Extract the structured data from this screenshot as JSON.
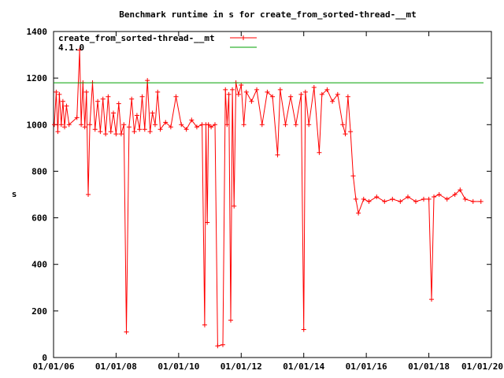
{
  "chart_data": {
    "type": "line",
    "title": "Benchmark runtime in s for create_from_sorted-thread-__mt",
    "xlabel": "",
    "ylabel": "s",
    "xlim": [
      "2006-01-01",
      "2020-01-01"
    ],
    "ylim": [
      0,
      1400
    ],
    "grid": false,
    "legend_position": "top-left",
    "x_tick_labels": [
      "01/01/06",
      "01/01/08",
      "01/01/10",
      "01/01/12",
      "01/01/14",
      "01/01/16",
      "01/01/18",
      "01/01/20"
    ],
    "y_tick_labels": [
      "0",
      "200",
      "400",
      "600",
      "800",
      "1000",
      "1200",
      "1400"
    ],
    "series": [
      {
        "name": "create_from_sorted-thread-__mt",
        "color": "#ff0000",
        "marker": "plus",
        "points": [
          [
            "2006-01-10",
            1000
          ],
          [
            "2006-02-01",
            1140
          ],
          [
            "2006-02-20",
            970
          ],
          [
            "2006-03-10",
            1130
          ],
          [
            "2006-04-01",
            1000
          ],
          [
            "2006-04-20",
            1100
          ],
          [
            "2006-05-10",
            990
          ],
          [
            "2006-06-01",
            1080
          ],
          [
            "2006-07-01",
            1000
          ],
          [
            "2006-10-01",
            1030
          ],
          [
            "2006-11-01",
            1320
          ],
          [
            "2006-11-20",
            1000
          ],
          [
            "2006-12-10",
            1180
          ],
          [
            "2007-01-01",
            990
          ],
          [
            "2007-01-20",
            1140
          ],
          [
            "2007-02-10",
            700
          ],
          [
            "2007-03-01",
            1000
          ],
          [
            "2007-04-01",
            1180
          ],
          [
            "2007-05-01",
            980
          ],
          [
            "2007-06-01",
            1100
          ],
          [
            "2007-07-01",
            970
          ],
          [
            "2007-08-01",
            1110
          ],
          [
            "2007-09-01",
            960
          ],
          [
            "2007-10-01",
            1120
          ],
          [
            "2007-11-01",
            970
          ],
          [
            "2007-12-01",
            1050
          ],
          [
            "2008-01-01",
            960
          ],
          [
            "2008-02-01",
            1090
          ],
          [
            "2008-03-01",
            960
          ],
          [
            "2008-04-01",
            1000
          ],
          [
            "2008-05-01",
            110
          ],
          [
            "2008-06-01",
            990
          ],
          [
            "2008-07-01",
            1110
          ],
          [
            "2008-08-01",
            970
          ],
          [
            "2008-09-01",
            1040
          ],
          [
            "2008-10-01",
            980
          ],
          [
            "2008-11-01",
            1120
          ],
          [
            "2008-12-01",
            980
          ],
          [
            "2009-01-01",
            1190
          ],
          [
            "2009-02-01",
            970
          ],
          [
            "2009-03-01",
            1050
          ],
          [
            "2009-04-01",
            1000
          ],
          [
            "2009-05-01",
            1140
          ],
          [
            "2009-06-01",
            980
          ],
          [
            "2009-08-01",
            1010
          ],
          [
            "2009-10-01",
            990
          ],
          [
            "2009-12-01",
            1120
          ],
          [
            "2010-02-01",
            1000
          ],
          [
            "2010-04-01",
            980
          ],
          [
            "2010-06-01",
            1020
          ],
          [
            "2010-08-01",
            990
          ],
          [
            "2010-10-01",
            1000
          ],
          [
            "2010-11-01",
            140
          ],
          [
            "2010-11-15",
            1000
          ],
          [
            "2010-12-01",
            580
          ],
          [
            "2010-12-15",
            1000
          ],
          [
            "2011-01-15",
            990
          ],
          [
            "2011-03-01",
            1000
          ],
          [
            "2011-04-01",
            50
          ],
          [
            "2011-06-01",
            55
          ],
          [
            "2011-07-01",
            1150
          ],
          [
            "2011-07-20",
            1000
          ],
          [
            "2011-08-10",
            1130
          ],
          [
            "2011-09-01",
            160
          ],
          [
            "2011-09-20",
            1150
          ],
          [
            "2011-10-10",
            650
          ],
          [
            "2011-11-01",
            1180
          ],
          [
            "2011-12-01",
            1130
          ],
          [
            "2012-01-01",
            1170
          ],
          [
            "2012-02-01",
            1000
          ],
          [
            "2012-03-01",
            1140
          ],
          [
            "2012-05-01",
            1100
          ],
          [
            "2012-07-01",
            1150
          ],
          [
            "2012-09-01",
            1000
          ],
          [
            "2012-11-01",
            1140
          ],
          [
            "2013-01-01",
            1120
          ],
          [
            "2013-03-01",
            870
          ],
          [
            "2013-04-01",
            1150
          ],
          [
            "2013-06-01",
            1000
          ],
          [
            "2013-08-01",
            1120
          ],
          [
            "2013-10-01",
            1000
          ],
          [
            "2013-12-01",
            1130
          ],
          [
            "2014-01-01",
            120
          ],
          [
            "2014-01-20",
            1140
          ],
          [
            "2014-03-01",
            1000
          ],
          [
            "2014-05-01",
            1160
          ],
          [
            "2014-07-01",
            880
          ],
          [
            "2014-08-01",
            1130
          ],
          [
            "2014-10-01",
            1150
          ],
          [
            "2014-12-01",
            1100
          ],
          [
            "2015-02-01",
            1130
          ],
          [
            "2015-04-01",
            1000
          ],
          [
            "2015-05-01",
            960
          ],
          [
            "2015-06-01",
            1120
          ],
          [
            "2015-07-01",
            970
          ],
          [
            "2015-08-01",
            780
          ],
          [
            "2015-09-01",
            680
          ],
          [
            "2015-10-01",
            620
          ],
          [
            "2015-12-01",
            680
          ],
          [
            "2016-02-01",
            670
          ],
          [
            "2016-05-01",
            690
          ],
          [
            "2016-08-01",
            670
          ],
          [
            "2016-11-01",
            680
          ],
          [
            "2017-02-01",
            670
          ],
          [
            "2017-05-01",
            690
          ],
          [
            "2017-08-01",
            670
          ],
          [
            "2017-11-01",
            680
          ],
          [
            "2018-01-01",
            680
          ],
          [
            "2018-02-01",
            250
          ],
          [
            "2018-03-01",
            690
          ],
          [
            "2018-05-01",
            700
          ],
          [
            "2018-08-01",
            680
          ],
          [
            "2018-11-01",
            700
          ],
          [
            "2019-01-01",
            720
          ],
          [
            "2019-03-01",
            680
          ],
          [
            "2019-06-01",
            670
          ],
          [
            "2019-09-01",
            670
          ]
        ]
      },
      {
        "name": "4.1.0",
        "color": "#00a000",
        "marker": "none",
        "points": [
          [
            "2006-01-01",
            1180
          ],
          [
            "2019-10-01",
            1180
          ]
        ]
      }
    ]
  }
}
